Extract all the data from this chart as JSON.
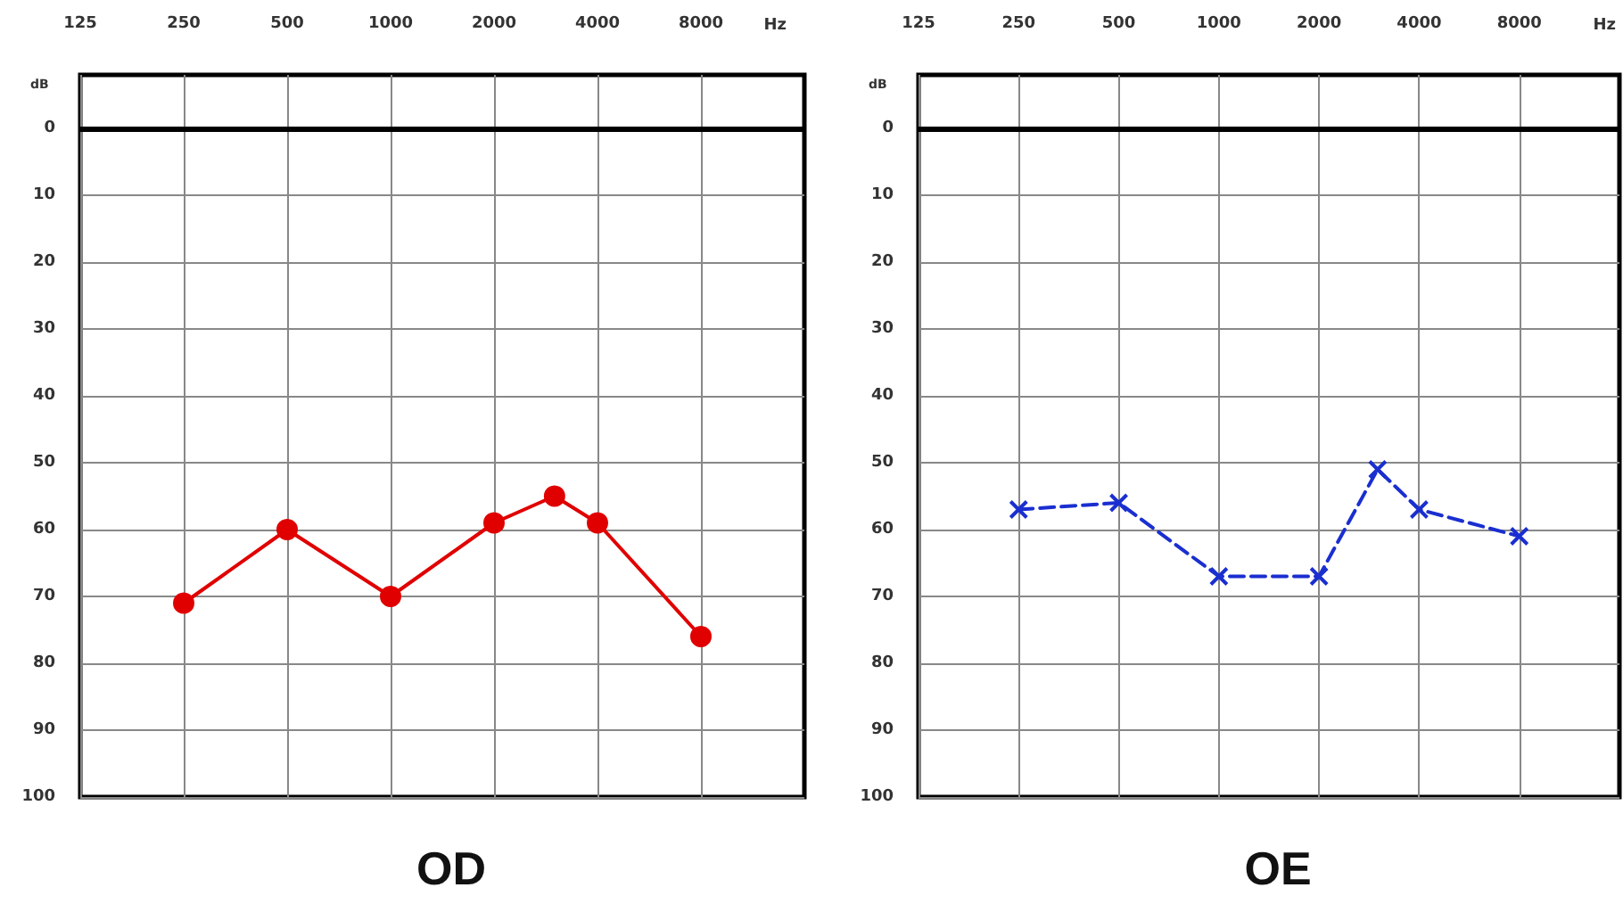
{
  "chart_data": [
    {
      "type": "line",
      "title": "OD",
      "xlabel": "Hz",
      "ylabel": "dB",
      "log": "x",
      "xlim": [
        125,
        16000
      ],
      "xticks": [
        125,
        250,
        500,
        1000,
        2000,
        4000,
        8000
      ],
      "ylim": [
        100,
        -8
      ],
      "yticks": [
        0,
        10,
        20,
        30,
        40,
        50,
        60,
        70,
        80,
        90,
        100
      ],
      "grid": true,
      "line_style": "solid",
      "marker": "circle",
      "x": [
        250,
        500,
        1000,
        2000,
        3000,
        4000,
        8000
      ],
      "series": [
        {
          "color": "#e00000",
          "values": [
            71,
            60,
            70,
            59,
            55,
            59,
            76
          ]
        }
      ],
      "ref_lines": [
        {
          "axis": "y",
          "value": 0,
          "label": null,
          "color": "#000000"
        }
      ]
    },
    {
      "type": "line",
      "title": "OE",
      "xlabel": "Hz",
      "ylabel": "dB",
      "log": "x",
      "xlim": [
        125,
        16000
      ],
      "xticks": [
        125,
        250,
        500,
        1000,
        2000,
        4000,
        8000
      ],
      "ylim": [
        100,
        -8
      ],
      "yticks": [
        0,
        10,
        20,
        30,
        40,
        50,
        60,
        70,
        80,
        90,
        100
      ],
      "grid": true,
      "line_style": "dashed",
      "marker": "cross",
      "x": [
        250,
        500,
        1000,
        2000,
        3000,
        4000,
        8000
      ],
      "series": [
        {
          "color": "#1a2fd0",
          "values": [
            57,
            56,
            67,
            67,
            51,
            57,
            61
          ]
        }
      ],
      "ref_lines": [
        {
          "axis": "y",
          "value": 0,
          "label": null,
          "color": "#000000"
        }
      ]
    }
  ]
}
